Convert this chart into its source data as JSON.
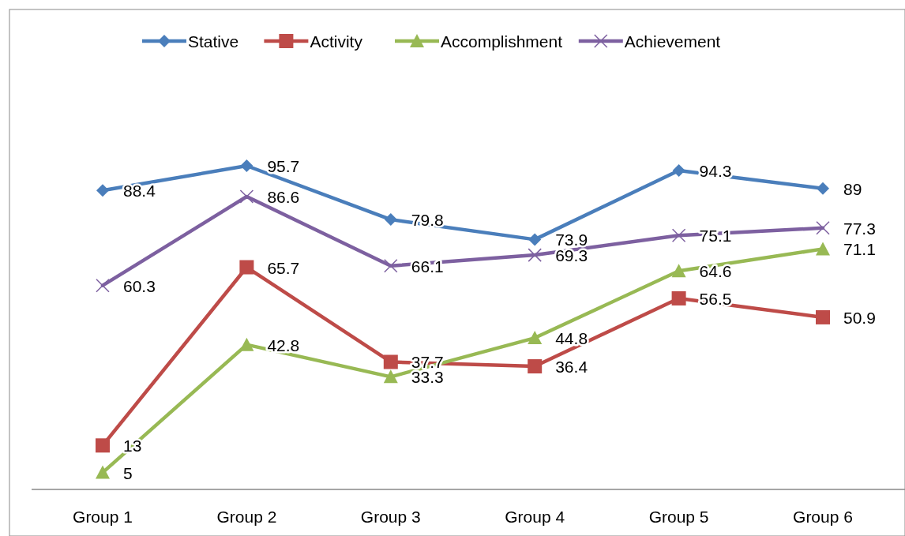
{
  "chart_data": {
    "type": "line",
    "categories": [
      "Group 1",
      "Group 2",
      "Group 3",
      "Group 4",
      "Group 5",
      "Group 6"
    ],
    "series": [
      {
        "name": "Stative",
        "color": "#4a7ebb",
        "marker": "diamond",
        "values": [
          88.4,
          95.7,
          79.8,
          73.9,
          94.3,
          89
        ]
      },
      {
        "name": "Activity",
        "color": "#be4b48",
        "marker": "square",
        "values": [
          13,
          65.7,
          37.7,
          36.4,
          56.5,
          50.9
        ]
      },
      {
        "name": "Accomplishment",
        "color": "#98b954",
        "marker": "triangle",
        "values": [
          5,
          42.8,
          33.3,
          44.8,
          64.6,
          71.1
        ]
      },
      {
        "name": "Achievement",
        "color": "#7d60a0",
        "marker": "cross",
        "values": [
          60.3,
          86.6,
          66.1,
          69.3,
          75.1,
          77.3
        ]
      }
    ],
    "tick_labels": "x",
    "data_labels": true,
    "legend": "top"
  }
}
